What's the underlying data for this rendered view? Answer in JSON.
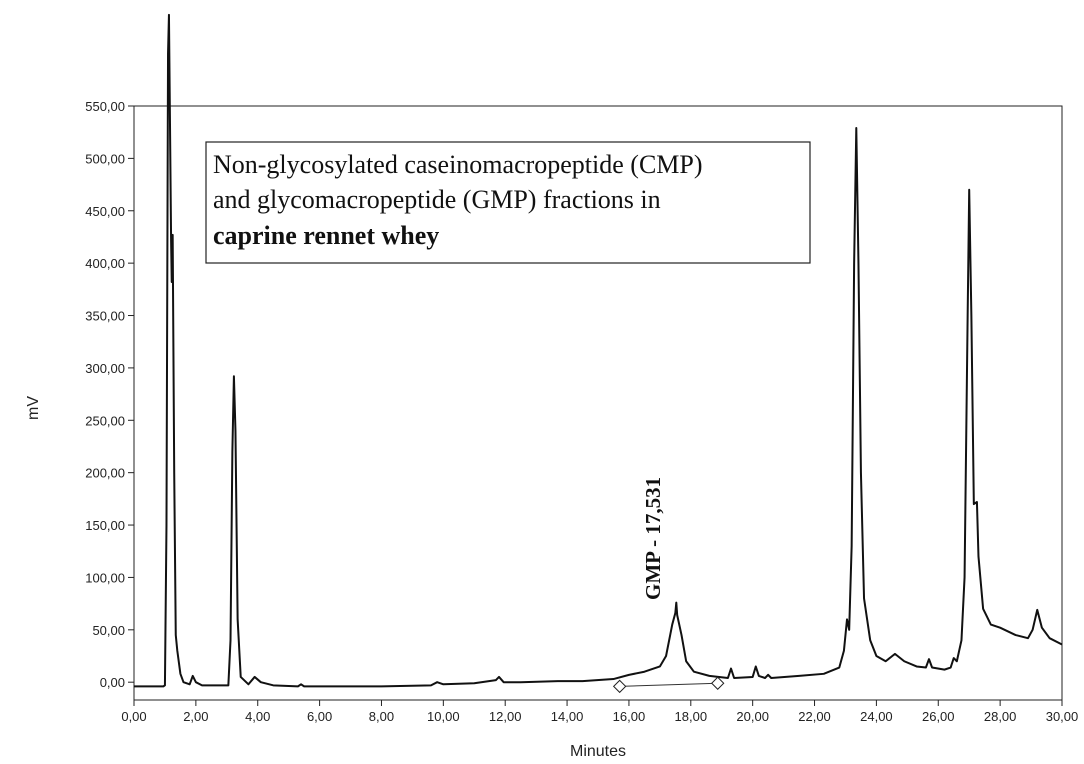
{
  "chart_data": {
    "type": "line",
    "xlabel": "Minutes",
    "ylabel": "mV",
    "annotation": [
      "Non-glycosylated caseinomacropeptide (CMP)",
      "and glycomacropeptide (GMP) fractions in",
      "caprine rennet whey"
    ],
    "peak_label": "GMP - 17,531",
    "color": "#111111",
    "grid": false,
    "xlim": [
      0,
      30
    ],
    "ylim": [
      -17,
      550
    ],
    "xticks": [
      {
        "value": 0,
        "label": "0,00"
      },
      {
        "value": 2,
        "label": "2,00"
      },
      {
        "value": 4,
        "label": "4,00"
      },
      {
        "value": 6,
        "label": "6,00"
      },
      {
        "value": 8,
        "label": "8,00"
      },
      {
        "value": 10,
        "label": "10,00"
      },
      {
        "value": 12,
        "label": "12,00"
      },
      {
        "value": 14,
        "label": "14,00"
      },
      {
        "value": 16,
        "label": "16,00"
      },
      {
        "value": 18,
        "label": "18,00"
      },
      {
        "value": 20,
        "label": "20,00"
      },
      {
        "value": 22,
        "label": "22,00"
      },
      {
        "value": 24,
        "label": "24,00"
      },
      {
        "value": 26,
        "label": "26,00"
      },
      {
        "value": 28,
        "label": "28,00"
      },
      {
        "value": 30,
        "label": "30,00"
      }
    ],
    "yticks": [
      {
        "value": 0,
        "label": "0,00"
      },
      {
        "value": 50,
        "label": "50,00"
      },
      {
        "value": 100,
        "label": "100,00"
      },
      {
        "value": 150,
        "label": "150,00"
      },
      {
        "value": 200,
        "label": "200,00"
      },
      {
        "value": 250,
        "label": "250,00"
      },
      {
        "value": 300,
        "label": "300,00"
      },
      {
        "value": 350,
        "label": "350,00"
      },
      {
        "value": 400,
        "label": "400,00"
      },
      {
        "value": 450,
        "label": "450,00"
      },
      {
        "value": 500,
        "label": "500,00"
      },
      {
        "value": 550,
        "label": "550,00"
      }
    ],
    "x": [
      0,
      0.95,
      1.0,
      1.05,
      1.1,
      1.13,
      1.2,
      1.22,
      1.25,
      1.3,
      1.35,
      1.4,
      1.5,
      1.6,
      1.8,
      1.9,
      2.0,
      2.2,
      3.05,
      3.12,
      3.18,
      3.23,
      3.28,
      3.35,
      3.45,
      3.7,
      3.9,
      4.1,
      4.5,
      5.3,
      5.4,
      5.5,
      7.0,
      8.0,
      9.6,
      9.8,
      10.0,
      11.0,
      11.7,
      11.8,
      11.95,
      12.5,
      13.7,
      14.5,
      15.5,
      16.0,
      16.5,
      17.0,
      17.2,
      17.4,
      17.5,
      17.531,
      17.56,
      17.7,
      17.85,
      18.1,
      18.6,
      19.2,
      19.3,
      19.4,
      20.0,
      20.1,
      20.2,
      20.4,
      20.5,
      20.6,
      21.5,
      22.3,
      22.8,
      22.95,
      23.05,
      23.12,
      23.2,
      23.28,
      23.35,
      23.42,
      23.5,
      23.6,
      23.8,
      24.0,
      24.3,
      24.6,
      24.9,
      25.3,
      25.6,
      25.7,
      25.8,
      26.2,
      26.4,
      26.5,
      26.6,
      26.75,
      26.85,
      26.95,
      27.0,
      27.07,
      27.15,
      27.25,
      27.3,
      27.45,
      27.7,
      28.0,
      28.5,
      28.9,
      29.05,
      29.2,
      29.35,
      29.6,
      30.0
    ],
    "values": [
      -4,
      -4,
      -3,
      150,
      600,
      637,
      420,
      382,
      427,
      200,
      45,
      30,
      8,
      0,
      -2,
      6,
      0,
      -3,
      -3,
      40,
      220,
      292,
      240,
      60,
      5,
      -2,
      5,
      0,
      -3,
      -4,
      -2,
      -4,
      -4,
      -4,
      -3,
      0,
      -2,
      -1,
      2,
      5,
      0,
      0,
      1,
      1,
      3,
      7,
      10,
      15,
      25,
      55,
      66,
      76,
      64,
      45,
      20,
      10,
      6,
      4,
      13,
      4,
      5,
      15,
      6,
      4,
      7,
      4,
      6,
      8,
      14,
      30,
      60,
      50,
      130,
      400,
      529,
      400,
      200,
      80,
      40,
      25,
      20,
      27,
      20,
      15,
      14,
      22,
      14,
      12,
      14,
      23,
      20,
      40,
      100,
      350,
      470,
      350,
      170,
      172,
      120,
      70,
      55,
      52,
      45,
      42,
      50,
      69,
      52,
      42,
      36
    ],
    "integration_baseline": {
      "x": [
        15.7,
        18.87
      ],
      "values": [
        -4,
        -1
      ]
    }
  }
}
